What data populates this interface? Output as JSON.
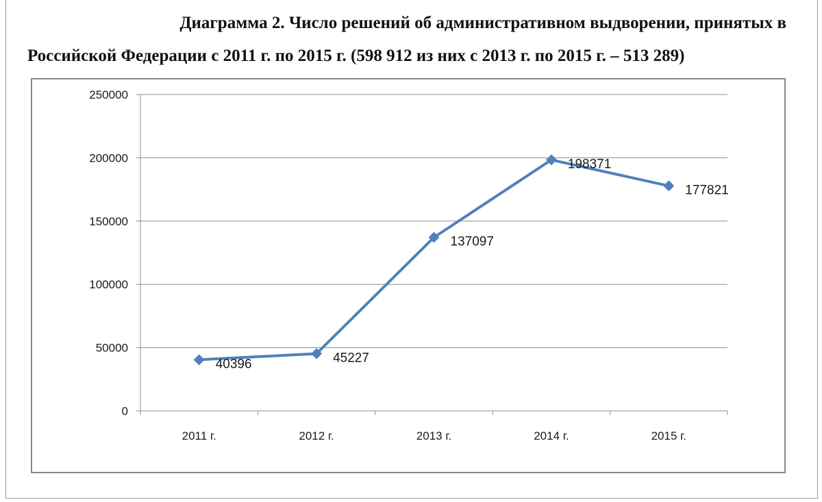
{
  "title": {
    "line1": "Диаграмма 2. Число решений об административном выдворении, принятых в",
    "line2": "Российской Федерации с 2011 г. по 2015 г. (598 912 из них с 2013 г. по 2015 г. – 513 289)"
  },
  "chart_data": {
    "type": "line",
    "categories": [
      "2011 г.",
      "2012 г.",
      "2013 г.",
      "2014 г.",
      "2015 г."
    ],
    "series": [
      {
        "values": [
          40396,
          45227,
          137097,
          198371,
          177821
        ]
      }
    ],
    "data_labels": [
      "40396",
      "45227",
      "137097",
      "198371",
      "177821"
    ],
    "ylim": [
      0,
      250000
    ],
    "yticks": [
      0,
      50000,
      100000,
      150000,
      200000,
      250000
    ],
    "ytick_labels": [
      "0",
      "50000",
      "100000",
      "150000",
      "200000",
      "250000"
    ],
    "grid": true,
    "legend": "none",
    "line_color": "#4f81bd"
  }
}
